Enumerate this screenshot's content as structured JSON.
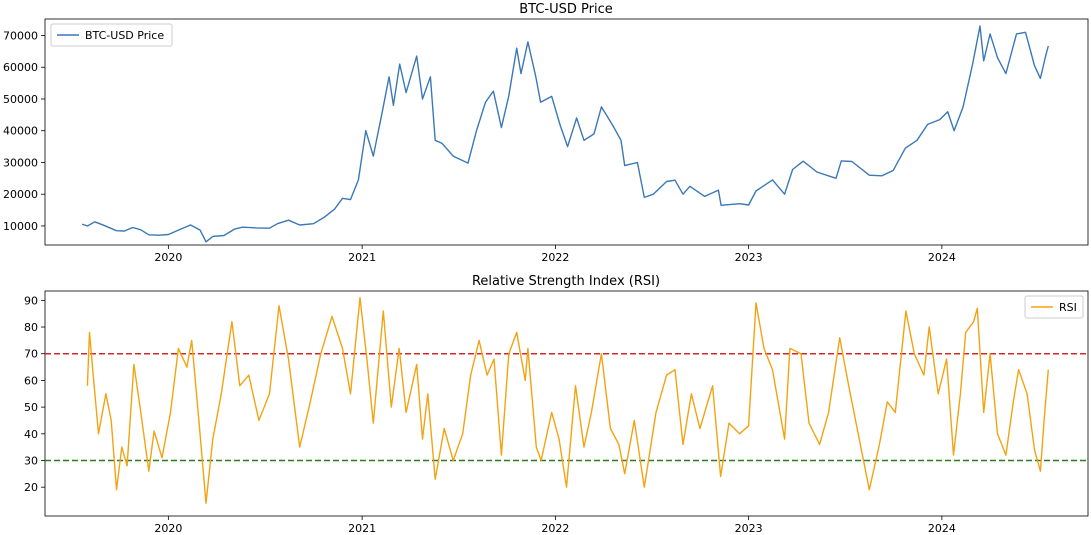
{
  "colors": {
    "price_line": "#3a78b6",
    "rsi_line": "#f3a312",
    "overbought": "#d62728",
    "oversold": "#2a7d1f"
  },
  "chart_data": [
    {
      "type": "line",
      "title": "BTC-USD Price",
      "xlabel": "",
      "ylabel": "",
      "x_ticks": [
        "2020",
        "2021",
        "2022",
        "2023",
        "2024"
      ],
      "y_ticks": [
        "10000",
        "20000",
        "30000",
        "40000",
        "50000",
        "60000",
        "70000"
      ],
      "xlim": [
        "2019-05-13",
        "2024-10-03"
      ],
      "ylim": [
        4000,
        75200
      ],
      "legend": {
        "position": "top-left",
        "entries": [
          "BTC-USD Price"
        ]
      },
      "grid": false,
      "series": [
        {
          "name": "BTC-USD Price",
          "color": "#3a78b6",
          "points": [
            [
              "2019-07-22",
              10600
            ],
            [
              "2019-08-01",
              10000
            ],
            [
              "2019-08-15",
              11300
            ],
            [
              "2019-09-01",
              10200
            ],
            [
              "2019-09-25",
              8500
            ],
            [
              "2019-10-10",
              8400
            ],
            [
              "2019-10-26",
              9500
            ],
            [
              "2019-11-10",
              8800
            ],
            [
              "2019-11-25",
              7200
            ],
            [
              "2019-12-15",
              7100
            ],
            [
              "2020-01-01",
              7300
            ],
            [
              "2020-01-20",
              8700
            ],
            [
              "2020-02-12",
              10300
            ],
            [
              "2020-03-01",
              8700
            ],
            [
              "2020-03-12",
              5000
            ],
            [
              "2020-03-25",
              6700
            ],
            [
              "2020-04-15",
              7000
            ],
            [
              "2020-05-05",
              9000
            ],
            [
              "2020-05-20",
              9600
            ],
            [
              "2020-06-15",
              9400
            ],
            [
              "2020-07-10",
              9300
            ],
            [
              "2020-07-25",
              10700
            ],
            [
              "2020-08-15",
              11800
            ],
            [
              "2020-09-05",
              10300
            ],
            [
              "2020-10-01",
              10700
            ],
            [
              "2020-10-22",
              12800
            ],
            [
              "2020-11-10",
              15300
            ],
            [
              "2020-11-25",
              18700
            ],
            [
              "2020-12-10",
              18300
            ],
            [
              "2020-12-25",
              24500
            ],
            [
              "2021-01-08",
              40000
            ],
            [
              "2021-01-22",
              32000
            ],
            [
              "2021-02-08",
              46000
            ],
            [
              "2021-02-21",
              57000
            ],
            [
              "2021-03-01",
              48000
            ],
            [
              "2021-03-13",
              61000
            ],
            [
              "2021-03-25",
              52000
            ],
            [
              "2021-04-14",
              63500
            ],
            [
              "2021-04-25",
              50000
            ],
            [
              "2021-05-10",
              57000
            ],
            [
              "2021-05-19",
              37000
            ],
            [
              "2021-06-01",
              36000
            ],
            [
              "2021-06-22",
              32000
            ],
            [
              "2021-07-20",
              29800
            ],
            [
              "2021-08-05",
              40000
            ],
            [
              "2021-08-22",
              49000
            ],
            [
              "2021-09-06",
              52500
            ],
            [
              "2021-09-21",
              41000
            ],
            [
              "2021-10-05",
              51000
            ],
            [
              "2021-10-20",
              66000
            ],
            [
              "2021-10-28",
              58000
            ],
            [
              "2021-11-10",
              68000
            ],
            [
              "2021-11-25",
              57000
            ],
            [
              "2021-12-04",
              49000
            ],
            [
              "2021-12-25",
              50800
            ],
            [
              "2022-01-10",
              41800
            ],
            [
              "2022-01-24",
              35000
            ],
            [
              "2022-02-10",
              44000
            ],
            [
              "2022-02-24",
              37000
            ],
            [
              "2022-03-15",
              39000
            ],
            [
              "2022-03-29",
              47500
            ],
            [
              "2022-04-20",
              41500
            ],
            [
              "2022-05-05",
              37000
            ],
            [
              "2022-05-12",
              29000
            ],
            [
              "2022-06-05",
              30000
            ],
            [
              "2022-06-18",
              19000
            ],
            [
              "2022-07-05",
              20000
            ],
            [
              "2022-07-30",
              24000
            ],
            [
              "2022-08-15",
              24400
            ],
            [
              "2022-08-30",
              20000
            ],
            [
              "2022-09-12",
              22500
            ],
            [
              "2022-10-10",
              19300
            ],
            [
              "2022-11-05",
              21300
            ],
            [
              "2022-11-10",
              16500
            ],
            [
              "2022-12-15",
              17000
            ],
            [
              "2023-01-01",
              16600
            ],
            [
              "2023-01-15",
              21000
            ],
            [
              "2023-02-15",
              24500
            ],
            [
              "2023-03-10",
              20000
            ],
            [
              "2023-03-25",
              27800
            ],
            [
              "2023-04-14",
              30400
            ],
            [
              "2023-05-10",
              27000
            ],
            [
              "2023-06-15",
              25000
            ],
            [
              "2023-06-25",
              30500
            ],
            [
              "2023-07-15",
              30300
            ],
            [
              "2023-08-17",
              26000
            ],
            [
              "2023-09-10",
              25800
            ],
            [
              "2023-10-01",
              27500
            ],
            [
              "2023-10-24",
              34500
            ],
            [
              "2023-11-15",
              37000
            ],
            [
              "2023-12-05",
              42000
            ],
            [
              "2023-12-28",
              43500
            ],
            [
              "2024-01-12",
              46000
            ],
            [
              "2024-01-24",
              40000
            ],
            [
              "2024-02-10",
              47500
            ],
            [
              "2024-02-28",
              61000
            ],
            [
              "2024-03-13",
              73000
            ],
            [
              "2024-03-20",
              62000
            ],
            [
              "2024-04-01",
              70500
            ],
            [
              "2024-04-15",
              63000
            ],
            [
              "2024-05-01",
              58000
            ],
            [
              "2024-05-21",
              70500
            ],
            [
              "2024-06-07",
              71000
            ],
            [
              "2024-06-24",
              60500
            ],
            [
              "2024-07-05",
              56500
            ],
            [
              "2024-07-15",
              63500
            ],
            [
              "2024-07-20",
              66700
            ]
          ]
        }
      ]
    },
    {
      "type": "line",
      "title": "Relative Strength Index (RSI)",
      "xlabel": "",
      "ylabel": "",
      "x_ticks": [
        "2020",
        "2021",
        "2022",
        "2023",
        "2024"
      ],
      "y_ticks": [
        "20",
        "30",
        "40",
        "50",
        "60",
        "70",
        "80",
        "90"
      ],
      "xlim": [
        "2019-05-13",
        "2024-10-03"
      ],
      "ylim": [
        9.2,
        93.5
      ],
      "legend": {
        "position": "top-right",
        "entries": [
          "RSI"
        ]
      },
      "grid": false,
      "reference_lines": [
        {
          "y": 70,
          "color": "#d62728",
          "style": "dashed"
        },
        {
          "y": 30,
          "color": "#2a7d1f",
          "style": "dashed"
        }
      ],
      "series": [
        {
          "name": "RSI",
          "color": "#f3a312",
          "points": [
            [
              "2019-08-01",
              58
            ],
            [
              "2019-08-05",
              78
            ],
            [
              "2019-08-12",
              62
            ],
            [
              "2019-08-22",
              40
            ],
            [
              "2019-09-05",
              55
            ],
            [
              "2019-09-15",
              45
            ],
            [
              "2019-09-25",
              19
            ],
            [
              "2019-10-05",
              35
            ],
            [
              "2019-10-15",
              28
            ],
            [
              "2019-10-28",
              66
            ],
            [
              "2019-11-10",
              48
            ],
            [
              "2019-11-25",
              26
            ],
            [
              "2019-12-05",
              41
            ],
            [
              "2019-12-20",
              31
            ],
            [
              "2020-01-05",
              48
            ],
            [
              "2020-01-20",
              72
            ],
            [
              "2020-02-05",
              65
            ],
            [
              "2020-02-14",
              75
            ],
            [
              "2020-02-28",
              44
            ],
            [
              "2020-03-12",
              14
            ],
            [
              "2020-03-25",
              38
            ],
            [
              "2020-04-10",
              55
            ],
            [
              "2020-04-30",
              82
            ],
            [
              "2020-05-15",
              58
            ],
            [
              "2020-06-01",
              62
            ],
            [
              "2020-06-20",
              45
            ],
            [
              "2020-07-10",
              55
            ],
            [
              "2020-07-28",
              88
            ],
            [
              "2020-08-15",
              68
            ],
            [
              "2020-09-05",
              35
            ],
            [
              "2020-09-25",
              52
            ],
            [
              "2020-10-15",
              70
            ],
            [
              "2020-11-05",
              84
            ],
            [
              "2020-11-25",
              72
            ],
            [
              "2020-12-10",
              55
            ],
            [
              "2020-12-28",
              91
            ],
            [
              "2021-01-10",
              68
            ],
            [
              "2021-01-22",
              44
            ],
            [
              "2021-02-10",
              86
            ],
            [
              "2021-02-25",
              50
            ],
            [
              "2021-03-12",
              72
            ],
            [
              "2021-03-25",
              48
            ],
            [
              "2021-04-14",
              66
            ],
            [
              "2021-04-25",
              38
            ],
            [
              "2021-05-05",
              55
            ],
            [
              "2021-05-19",
              23
            ],
            [
              "2021-06-05",
              42
            ],
            [
              "2021-06-22",
              30
            ],
            [
              "2021-07-10",
              40
            ],
            [
              "2021-07-25",
              62
            ],
            [
              "2021-08-10",
              75
            ],
            [
              "2021-08-25",
              62
            ],
            [
              "2021-09-07",
              68
            ],
            [
              "2021-09-21",
              32
            ],
            [
              "2021-10-05",
              70
            ],
            [
              "2021-10-20",
              78
            ],
            [
              "2021-11-05",
              60
            ],
            [
              "2021-11-10",
              72
            ],
            [
              "2021-11-26",
              35
            ],
            [
              "2021-12-05",
              30
            ],
            [
              "2021-12-25",
              48
            ],
            [
              "2022-01-08",
              38
            ],
            [
              "2022-01-22",
              20
            ],
            [
              "2022-02-08",
              58
            ],
            [
              "2022-02-24",
              35
            ],
            [
              "2022-03-10",
              48
            ],
            [
              "2022-03-29",
              70
            ],
            [
              "2022-04-15",
              42
            ],
            [
              "2022-05-01",
              36
            ],
            [
              "2022-05-12",
              25
            ],
            [
              "2022-05-30",
              45
            ],
            [
              "2022-06-18",
              20
            ],
            [
              "2022-07-10",
              48
            ],
            [
              "2022-07-30",
              62
            ],
            [
              "2022-08-15",
              64
            ],
            [
              "2022-08-30",
              36
            ],
            [
              "2022-09-15",
              55
            ],
            [
              "2022-10-01",
              42
            ],
            [
              "2022-10-25",
              58
            ],
            [
              "2022-11-09",
              24
            ],
            [
              "2022-11-25",
              44
            ],
            [
              "2022-12-15",
              40
            ],
            [
              "2023-01-01",
              43
            ],
            [
              "2023-01-15",
              89
            ],
            [
              "2023-01-30",
              72
            ],
            [
              "2023-02-15",
              64
            ],
            [
              "2023-03-10",
              38
            ],
            [
              "2023-03-20",
              72
            ],
            [
              "2023-04-10",
              70
            ],
            [
              "2023-04-25",
              44
            ],
            [
              "2023-05-15",
              36
            ],
            [
              "2023-06-01",
              48
            ],
            [
              "2023-06-22",
              76
            ],
            [
              "2023-07-10",
              57
            ],
            [
              "2023-08-17",
              19
            ],
            [
              "2023-09-05",
              36
            ],
            [
              "2023-09-20",
              52
            ],
            [
              "2023-10-05",
              48
            ],
            [
              "2023-10-25",
              86
            ],
            [
              "2023-11-10",
              70
            ],
            [
              "2023-11-28",
              62
            ],
            [
              "2023-12-08",
              80
            ],
            [
              "2023-12-25",
              55
            ],
            [
              "2024-01-10",
              68
            ],
            [
              "2024-01-23",
              32
            ],
            [
              "2024-02-05",
              55
            ],
            [
              "2024-02-15",
              78
            ],
            [
              "2024-03-01",
              82
            ],
            [
              "2024-03-08",
              87
            ],
            [
              "2024-03-20",
              48
            ],
            [
              "2024-04-01",
              70
            ],
            [
              "2024-04-15",
              40
            ],
            [
              "2024-05-01",
              32
            ],
            [
              "2024-05-15",
              52
            ],
            [
              "2024-05-25",
              64
            ],
            [
              "2024-06-10",
              55
            ],
            [
              "2024-06-24",
              34
            ],
            [
              "2024-07-05",
              26
            ],
            [
              "2024-07-12",
              45
            ],
            [
              "2024-07-20",
              64
            ]
          ]
        }
      ]
    }
  ]
}
